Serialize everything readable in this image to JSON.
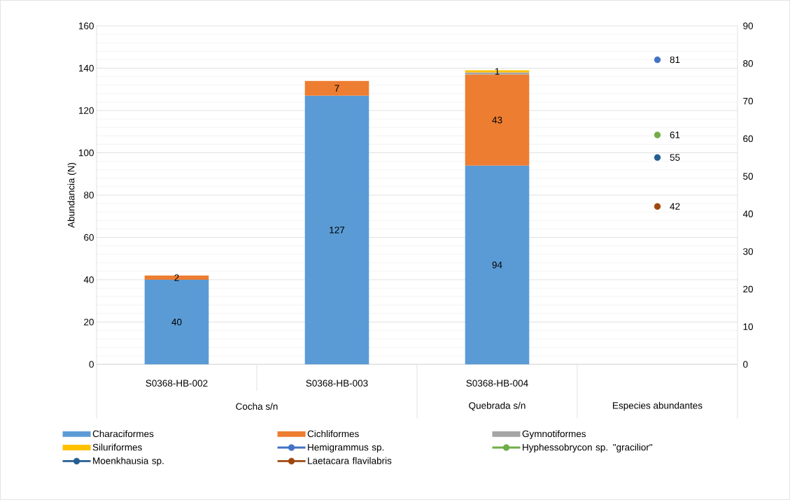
{
  "chart_data": {
    "type": "bar",
    "stacked": true,
    "categories": [
      "S0368-HB-002",
      "S0368-HB-003",
      "S0368-HB-004",
      null
    ],
    "ylabel": "Abundancia (N)",
    "ylim": [
      0,
      160
    ],
    "yticks": [
      0,
      20,
      40,
      60,
      80,
      100,
      120,
      140,
      160
    ],
    "y2lim": [
      0,
      90
    ],
    "y2ticks": [
      0,
      10,
      20,
      30,
      40,
      50,
      60,
      70,
      80,
      90
    ],
    "grid": "y",
    "legend": "bottom",
    "marker": "circle",
    "annotations": [
      "Cocha s/n",
      "Quebrada s/n",
      "Especies abundantes"
    ],
    "series": [
      {
        "name": "Characiformes",
        "color": "#5b9bd5",
        "values": [
          40,
          127,
          94,
          null
        ],
        "value_labels": [
          "40",
          "127",
          "94",
          null
        ]
      },
      {
        "name": "Cichliformes",
        "color": "#ed7d31",
        "values": [
          2,
          7,
          43,
          null
        ],
        "value_labels": [
          "2",
          "7",
          "43",
          null
        ]
      },
      {
        "name": "Gymnotiformes",
        "color": "#a5a5a5",
        "values": [
          null,
          null,
          1,
          null
        ],
        "value_labels": [
          null,
          null,
          null,
          null
        ]
      },
      {
        "name": "Siluriformes",
        "color": "#ffc000",
        "values": [
          null,
          null,
          1,
          null
        ],
        "value_labels": [
          null,
          null,
          "1",
          null
        ]
      },
      {
        "name": "Hemigrammus sp.",
        "type": "scatter",
        "axis": "y2",
        "color": "#4472c4",
        "values": [
          null,
          null,
          null,
          81
        ],
        "value_labels": [
          null,
          null,
          null,
          "81"
        ]
      },
      {
        "name": "Hyphessobrycon sp. \"gracilior\"",
        "type": "scatter",
        "axis": "y2",
        "color": "#70ad47",
        "values": [
          null,
          null,
          null,
          61
        ],
        "value_labels": [
          null,
          null,
          null,
          "61"
        ]
      },
      {
        "name": "Moenkhausia sp.",
        "type": "scatter",
        "axis": "y2",
        "color": "#255e91",
        "values": [
          null,
          null,
          null,
          55
        ],
        "value_labels": [
          null,
          null,
          null,
          "55"
        ]
      },
      {
        "name": "Laetacara flavilabris",
        "type": "scatter",
        "axis": "y2",
        "color": "#9e480e",
        "values": [
          null,
          null,
          null,
          42
        ],
        "value_labels": [
          null,
          null,
          null,
          "42"
        ]
      }
    ]
  }
}
